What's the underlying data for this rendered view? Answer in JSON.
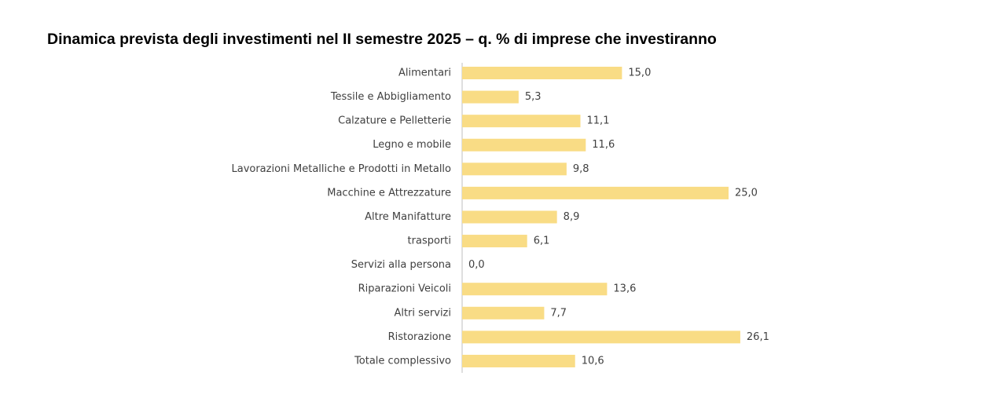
{
  "chart_data": {
    "type": "barh",
    "title": "Dinamica prevista degli investimenti nel II semestre 2025 – q. % di imprese che investiranno",
    "categories": [
      "Alimentari",
      "Tessile e Abbigliamento",
      "Calzature e Pelletterie",
      "Legno e mobile",
      "Lavorazioni Metalliche e Prodotti in Metallo",
      "Macchine e Attrezzature",
      "Altre Manifatture",
      "trasporti",
      "Servizi alla persona",
      "Riparazioni Veicoli",
      "Altri servizi",
      "Ristorazione",
      "Totale complessivo"
    ],
    "values": [
      15.0,
      5.3,
      11.1,
      11.6,
      9.8,
      25.0,
      8.9,
      6.1,
      0.0,
      13.6,
      7.7,
      26.1,
      10.6
    ],
    "value_labels": [
      "15,0",
      "5,3",
      "11,1",
      "11,6",
      "9,8",
      "25,0",
      "8,9",
      "6,1",
      "0,0",
      "13,6",
      "7,7",
      "26,1",
      "10,6"
    ],
    "color": "#f9dc85"
  }
}
